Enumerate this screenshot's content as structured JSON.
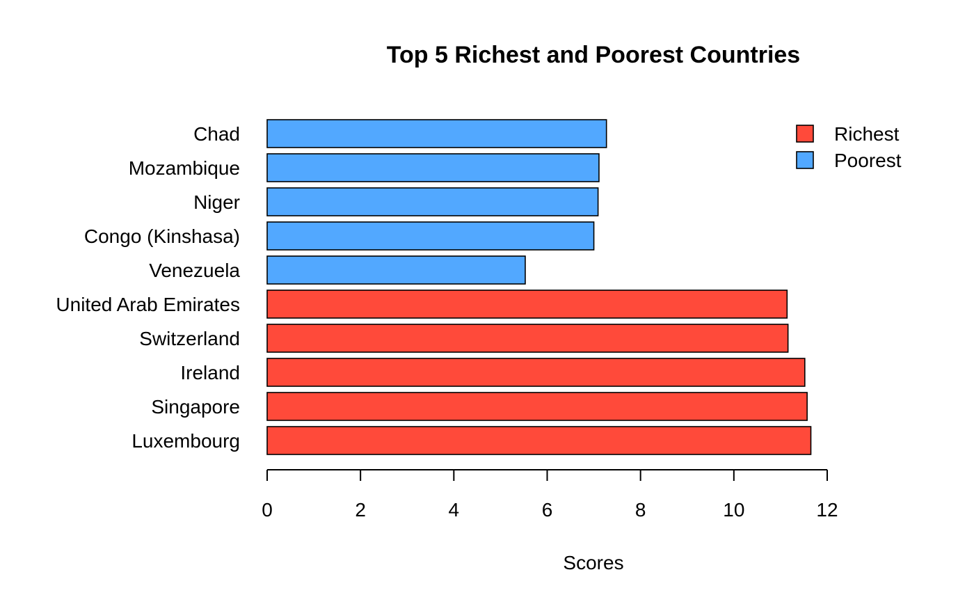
{
  "chart_data": {
    "type": "bar",
    "orientation": "horizontal",
    "title": "Top 5 Richest and Poorest Countries",
    "xlabel": "Scores",
    "ylabel": "",
    "xlim": [
      0,
      12
    ],
    "xticks": [
      0,
      2,
      4,
      6,
      8,
      10,
      12
    ],
    "grid": false,
    "legend_position": "top-right",
    "categories": [
      "Luxembourg",
      "Singapore",
      "Ireland",
      "Switzerland",
      "United Arab Emirates",
      "Venezuela",
      "Congo (Kinshasa)",
      "Niger",
      "Mozambique",
      "Chad"
    ],
    "values": [
      11.65,
      11.57,
      11.52,
      11.16,
      11.14,
      5.53,
      7.0,
      7.09,
      7.11,
      7.27
    ],
    "groups": [
      "Richest",
      "Richest",
      "Richest",
      "Richest",
      "Richest",
      "Poorest",
      "Poorest",
      "Poorest",
      "Poorest",
      "Poorest"
    ],
    "legend": [
      {
        "name": "Richest",
        "color": "#FF4A3A"
      },
      {
        "name": "Poorest",
        "color": "#52A8FF"
      }
    ]
  }
}
